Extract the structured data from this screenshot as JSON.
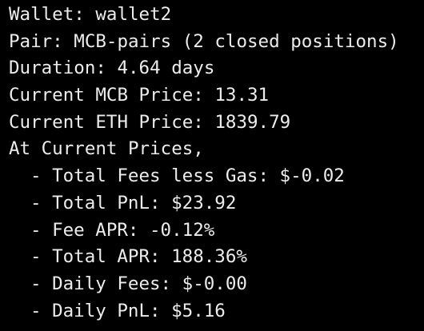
{
  "colors": {
    "background": "#000000",
    "text": "#ececec"
  },
  "terminal": {
    "lines": [
      "Wallet: wallet2",
      "Pair: MCB-pairs (2 closed positions)",
      "Duration: 4.64 days",
      "Current MCB Price: 13.31",
      "Current ETH Price: 1839.79",
      "At Current Prices,"
    ],
    "metrics": [
      "- Total Fees less Gas: $-0.02",
      "- Total PnL: $23.92",
      "- Fee APR: -0.12%",
      "- Total APR: 188.36%",
      "- Daily Fees: $-0.00",
      "- Daily PnL: $5.16"
    ]
  }
}
